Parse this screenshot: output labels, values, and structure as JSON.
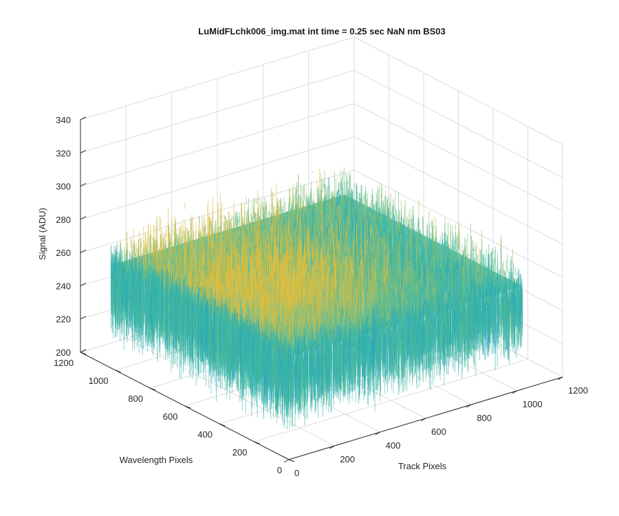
{
  "chart_data": {
    "type": "surface",
    "title": "LuMidFLchk006_img.mat int time = 0.25 sec  NaN nm BS03",
    "xlabel": "Wavelength Pixels",
    "ylabel": "Track Pixels",
    "zlabel": "Signal (ADU)",
    "xlim": [
      0,
      1200
    ],
    "ylim": [
      0,
      1200
    ],
    "zlim": [
      200,
      340
    ],
    "x_ticks": [
      "0",
      "200",
      "400",
      "600",
      "800",
      "1000",
      "1200"
    ],
    "y_ticks": [
      "0",
      "200",
      "400",
      "600",
      "800",
      "1000",
      "1200"
    ],
    "z_ticks": [
      "200",
      "220",
      "240",
      "260",
      "280",
      "300",
      "320",
      "340"
    ],
    "grid": true,
    "colormap": "parula",
    "surface_extent": {
      "x": [
        0,
        1024
      ],
      "y": [
        0,
        1024
      ]
    },
    "signal_center": 262,
    "signal_range": [
      220,
      300
    ],
    "colors": {
      "low": "#1f9cc8",
      "mid": "#3dbca0",
      "high": "#e5bd3a"
    }
  }
}
